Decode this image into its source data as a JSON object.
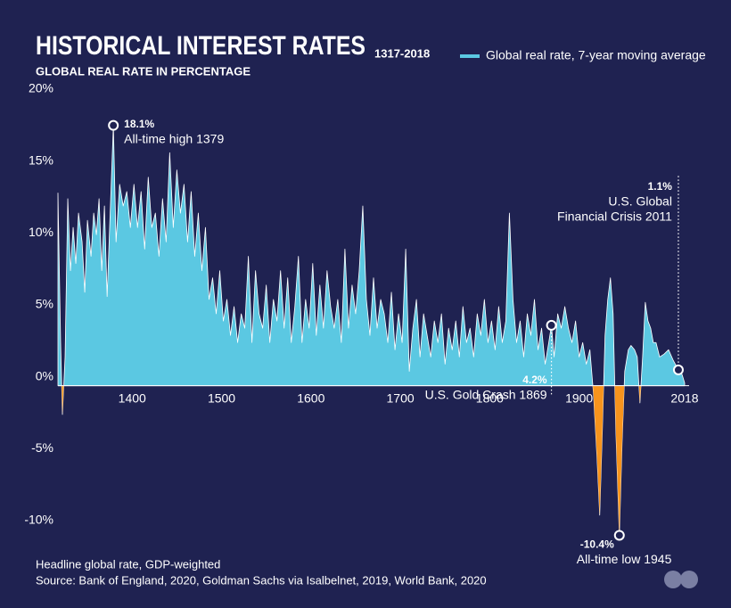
{
  "chart_data": {
    "type": "area",
    "title": "HISTORICAL INTEREST RATES",
    "title_years": "1317-2018",
    "subtitle": "GLOBAL REAL RATE IN PERCENTAGE",
    "footnotes": [
      "Headline global rate, GDP-weighted",
      "Source: Bank of England, 2020, Goldman Sachs via Isalbelnet, 2019, World Bank, 2020"
    ],
    "legend_position": "top-right",
    "negative_color": "#f7941d",
    "x": [
      1317,
      1320,
      1322,
      1325,
      1328,
      1331,
      1334,
      1337,
      1340,
      1344,
      1347,
      1350,
      1354,
      1357,
      1360,
      1363,
      1366,
      1369,
      1372,
      1376,
      1379,
      1382,
      1386,
      1390,
      1394,
      1398,
      1402,
      1406,
      1410,
      1414,
      1418,
      1422,
      1426,
      1430,
      1434,
      1438,
      1442,
      1446,
      1450,
      1454,
      1458,
      1462,
      1466,
      1470,
      1474,
      1478,
      1482,
      1486,
      1490,
      1494,
      1498,
      1502,
      1506,
      1510,
      1514,
      1518,
      1522,
      1526,
      1530,
      1534,
      1538,
      1542,
      1546,
      1550,
      1554,
      1558,
      1562,
      1566,
      1570,
      1574,
      1578,
      1582,
      1586,
      1590,
      1594,
      1598,
      1602,
      1606,
      1610,
      1614,
      1618,
      1622,
      1626,
      1630,
      1634,
      1638,
      1642,
      1646,
      1650,
      1654,
      1658,
      1662,
      1666,
      1670,
      1674,
      1678,
      1682,
      1686,
      1690,
      1694,
      1698,
      1702,
      1706,
      1710,
      1714,
      1718,
      1722,
      1726,
      1730,
      1734,
      1738,
      1742,
      1746,
      1750,
      1754,
      1758,
      1762,
      1766,
      1770,
      1774,
      1778,
      1782,
      1786,
      1790,
      1794,
      1798,
      1802,
      1806,
      1810,
      1814,
      1818,
      1822,
      1826,
      1830,
      1834,
      1838,
      1842,
      1846,
      1850,
      1854,
      1858,
      1862,
      1866,
      1869,
      1872,
      1876,
      1880,
      1884,
      1888,
      1892,
      1896,
      1900,
      1904,
      1908,
      1912,
      1916,
      1920,
      1923,
      1926,
      1929,
      1932,
      1935,
      1938,
      1941,
      1945,
      1948,
      1951,
      1955,
      1958,
      1962,
      1965,
      1968,
      1971,
      1974,
      1977,
      1980,
      1983,
      1986,
      1990,
      1995,
      2000,
      2005,
      2011,
      2015,
      2018
    ],
    "series": [
      {
        "name": "Global real rate, 7-year moving average",
        "color": "#5bc8e2",
        "values": [
          13.4,
          3,
          -2,
          2,
          13,
          8,
          11,
          8.5,
          12,
          10,
          6.5,
          11.5,
          9,
          12,
          10.5,
          13,
          8,
          12.5,
          6.2,
          13,
          18.1,
          10,
          14,
          12.5,
          13.5,
          11,
          14,
          11,
          13.5,
          9.5,
          14.5,
          11,
          12,
          9,
          13,
          10,
          16.2,
          11,
          15,
          12,
          14,
          10,
          13.5,
          9,
          12,
          8,
          11,
          6,
          7.5,
          5,
          8,
          4.5,
          6,
          3.5,
          5.5,
          3,
          5,
          4,
          9,
          3,
          8,
          5,
          4,
          7,
          3,
          6,
          4.5,
          8,
          4,
          7.5,
          3,
          5.5,
          9,
          3,
          6,
          4,
          8.5,
          3.5,
          7,
          4,
          8,
          5.5,
          4,
          6,
          3,
          9.5,
          4,
          7,
          5,
          8,
          12.5,
          6,
          3.5,
          7.5,
          4,
          6,
          5,
          3,
          6.5,
          2.5,
          5,
          3,
          9.5,
          1,
          4,
          6,
          2,
          5,
          3.5,
          2,
          4.5,
          3,
          5,
          1.5,
          4,
          2.5,
          4.5,
          2,
          5.5,
          3,
          4,
          2,
          5,
          3.5,
          6,
          3,
          4.5,
          2.5,
          5.5,
          3,
          4.5,
          12,
          6,
          3,
          4.5,
          2,
          5,
          3.5,
          6,
          2.5,
          4,
          1.5,
          3,
          4.2,
          2,
          5,
          4,
          5.5,
          4,
          3,
          4.5,
          2,
          3,
          1.5,
          2.5,
          -0.5,
          -5,
          -9,
          -3,
          3.5,
          6,
          7.5,
          5,
          -3,
          -10.4,
          -4,
          1,
          2.5,
          2.8,
          2.5,
          2,
          -1.2,
          2,
          5.8,
          4.5,
          4,
          3,
          3,
          2,
          2.2,
          2.5,
          1.8,
          1.1,
          0.8,
          0.2
        ]
      }
    ],
    "annotations": [
      {
        "label": "18.1%",
        "text": [
          "All-time high 1379"
        ],
        "x": 1379,
        "y": 18.1
      },
      {
        "label": "4.2%",
        "text": [
          "U.S. Gold Crash 1869"
        ],
        "x": 1869,
        "y": 4.2
      },
      {
        "label": "-10.4%",
        "text": [
          "All-time low 1945"
        ],
        "x": 1945,
        "y": -10.4
      },
      {
        "label": "1.1%",
        "text": [
          "U.S. Global",
          "Financial Crisis 2011"
        ],
        "x": 2011,
        "y": 1.1
      }
    ],
    "xlim": [
      1317,
      2023
    ],
    "xticks": [
      1400,
      1500,
      1600,
      1700,
      1800,
      1900,
      2018
    ],
    "ylim": [
      -10,
      20
    ],
    "yticks": [
      {
        "value": -10,
        "label": "-10%"
      },
      {
        "value": -5,
        "label": "-5%"
      },
      {
        "value": 0,
        "label": "0%"
      },
      {
        "value": 5,
        "label": "5%"
      },
      {
        "value": 10,
        "label": "10%"
      },
      {
        "value": 15,
        "label": "15%"
      },
      {
        "value": 20,
        "label": "20%"
      }
    ]
  }
}
